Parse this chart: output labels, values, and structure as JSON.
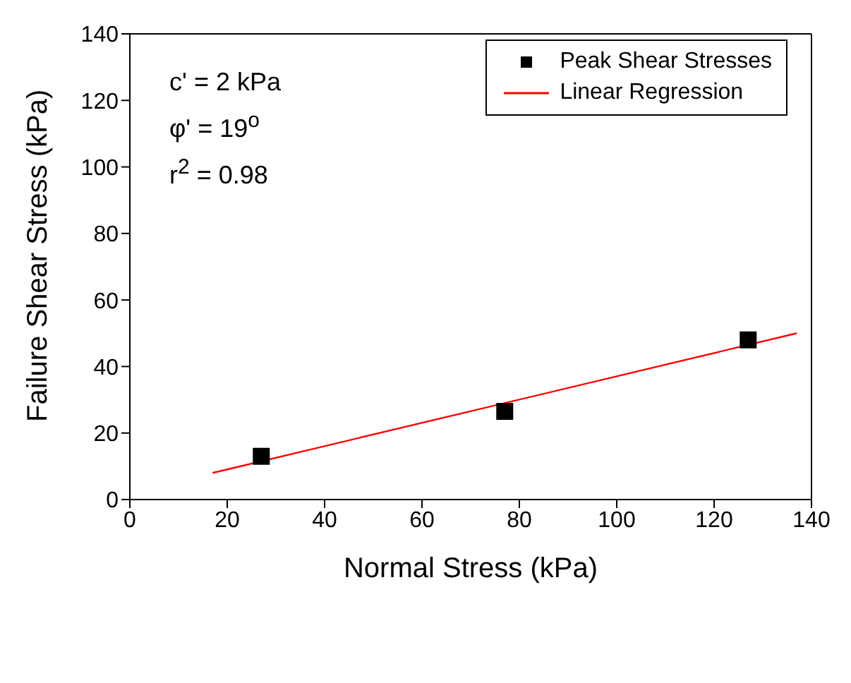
{
  "chart_data": {
    "type": "scatter",
    "xlabel": "Normal Stress (kPa)",
    "ylabel": "Failure Shear Stress (kPa)",
    "xlim": [
      0,
      140
    ],
    "xticks": [
      0,
      20,
      40,
      60,
      80,
      100,
      120,
      140
    ],
    "ylim": [
      0,
      140
    ],
    "yticks": [
      0,
      20,
      40,
      60,
      80,
      100,
      120,
      140
    ],
    "grid": false,
    "legend": "top right",
    "marker": "square",
    "annotations": [
      "c' = 2 kPa",
      "φ' = 19$^{o}$",
      "r$^{2}$ = 0.98"
    ],
    "series": [
      {
        "name": "Peak Shear Stresses",
        "color": "#000000",
        "x": [
          27,
          77,
          127
        ],
        "values": [
          13,
          26.5,
          48
        ]
      },
      {
        "name": "Linear Regression",
        "type": "line",
        "color": "#ff0000",
        "x": [
          17,
          137
        ],
        "values": [
          8,
          50
        ],
        "marker": "none",
        "line_style": "solid"
      }
    ]
  }
}
